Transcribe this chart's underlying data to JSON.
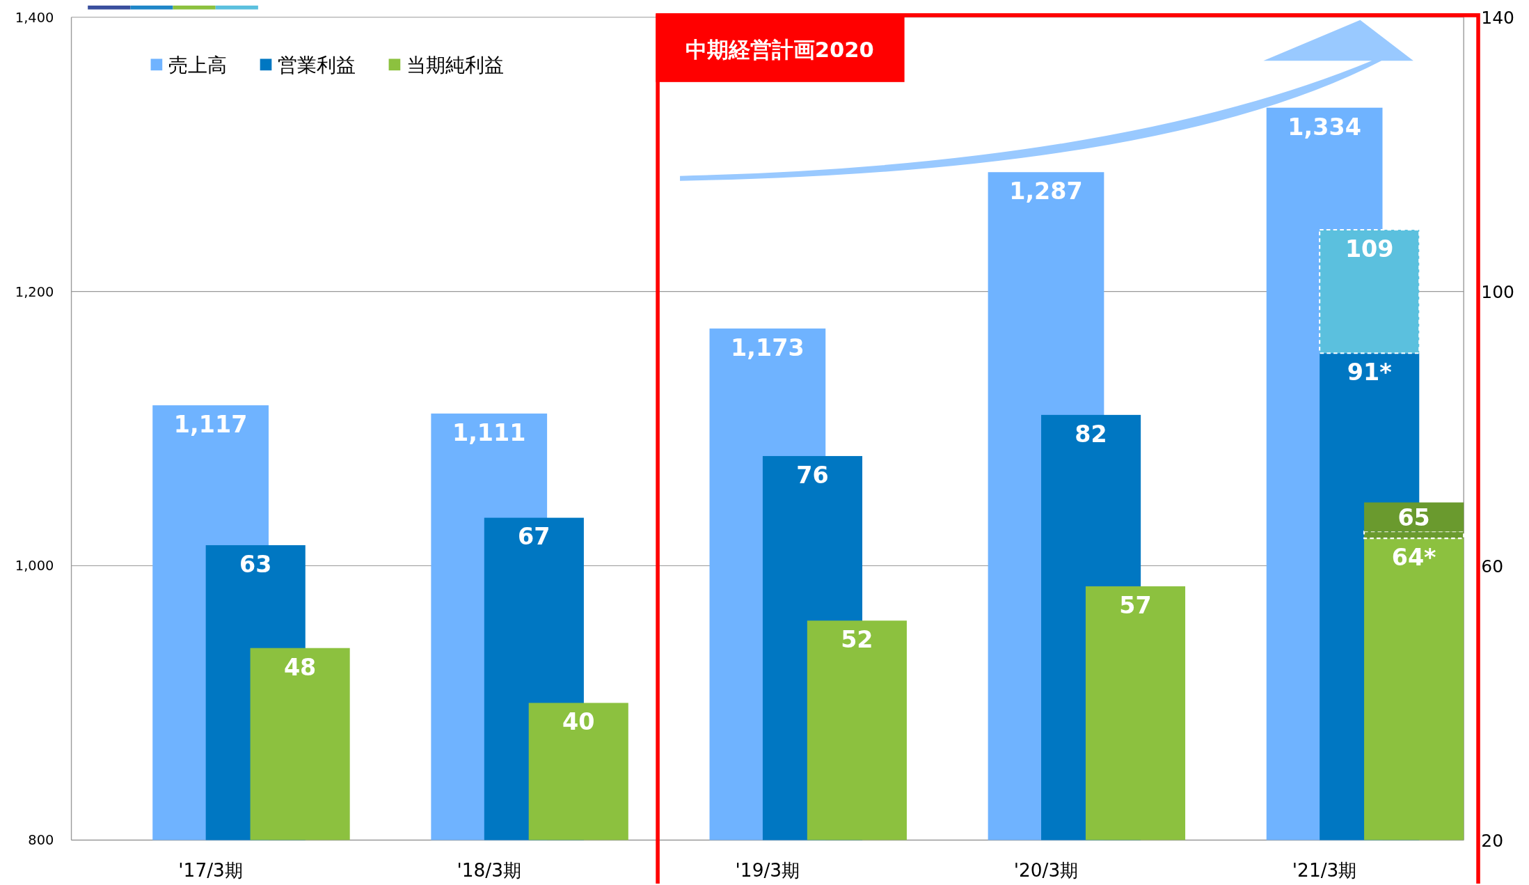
{
  "chart_data": {
    "type": "bar",
    "categories": [
      "'17/3期",
      "'18/3期",
      "'19/3期",
      "'20/3期",
      "'21/3期"
    ],
    "series": [
      {
        "name": "売上高",
        "color": "#6fb3ff",
        "values": [
          1117,
          1111,
          1173,
          1287,
          1334
        ],
        "value_labels": [
          "1,117",
          "1,111",
          "1,173",
          "1,287",
          "1,334"
        ]
      },
      {
        "name": "営業利益",
        "color": "#0077c2",
        "axis": "y2",
        "values": [
          63,
          67,
          76,
          82,
          91
        ],
        "value_labels": [
          "63",
          "67",
          "76",
          "82",
          "91*"
        ]
      },
      {
        "name": "当期純利益",
        "color": "#8cc13f",
        "axis": "y2",
        "values": [
          48,
          40,
          52,
          57,
          64
        ],
        "value_labels": [
          "48",
          "40",
          "52",
          "57",
          "64*"
        ]
      },
      {
        "color": "#5bc0de",
        "axis": "y2",
        "line_style": "dashed",
        "base": [
          null,
          null,
          null,
          null,
          91
        ],
        "values": [
          null,
          null,
          null,
          null,
          18
        ],
        "value_labels": [
          null,
          null,
          null,
          null,
          "109"
        ]
      },
      {
        "color": "#6a9a2e",
        "axis": "y2",
        "line_style": "dashed",
        "base": [
          null,
          null,
          null,
          null,
          64
        ],
        "values": [
          null,
          null,
          null,
          null,
          1
        ],
        "value_labels": [
          null,
          null,
          null,
          null,
          "65"
        ]
      }
    ],
    "ylim": [
      800,
      1400
    ],
    "yticks": [
      {
        "value": 800,
        "label": "800"
      },
      {
        "value": 1000,
        "label": "1,000"
      },
      {
        "value": 1200,
        "label": "1,200"
      },
      {
        "value": 1400,
        "label": "1,400"
      }
    ],
    "y2lim": [
      20,
      140
    ],
    "y2ticks": [
      20,
      60,
      100,
      140
    ],
    "grid": "y",
    "legend": "top left",
    "annotations": [
      "中期経営計画2020"
    ]
  }
}
